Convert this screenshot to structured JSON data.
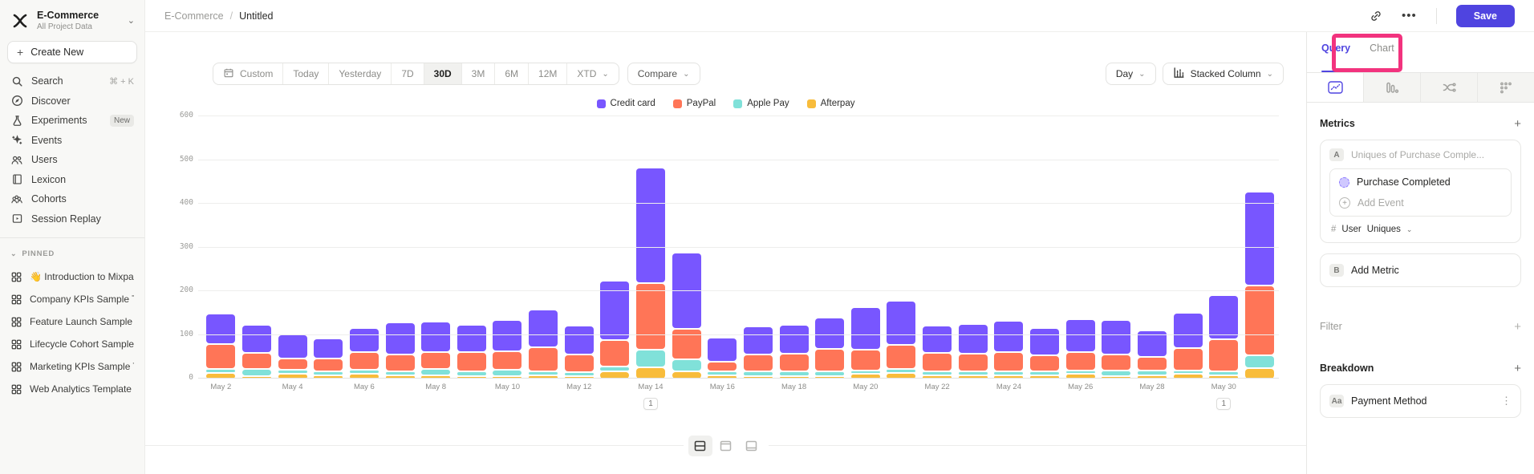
{
  "sidebar": {
    "project_name": "E-Commerce",
    "project_subtitle": "All Project Data",
    "create_new_label": "Create New",
    "nav": [
      {
        "label": "Search",
        "icon": "search",
        "shortcut": "⌘ + K"
      },
      {
        "label": "Discover",
        "icon": "discover"
      },
      {
        "label": "Experiments",
        "icon": "experiments",
        "badge": "New"
      },
      {
        "label": "Events",
        "icon": "events"
      },
      {
        "label": "Users",
        "icon": "users"
      },
      {
        "label": "Lexicon",
        "icon": "lexicon"
      },
      {
        "label": "Cohorts",
        "icon": "cohorts"
      },
      {
        "label": "Session Replay",
        "icon": "session-replay"
      }
    ],
    "pinned_header": "PINNED",
    "pinned": [
      {
        "label": "👋 Introduction to Mixpanel Bo"
      },
      {
        "label": "Company KPIs Sample Templat"
      },
      {
        "label": "Feature Launch Sample Templa"
      },
      {
        "label": "Lifecycle Cohort Sample Temp"
      },
      {
        "label": "Marketing KPIs Sample Templat"
      },
      {
        "label": "Web Analytics Template"
      }
    ]
  },
  "topbar": {
    "breadcrumb_project": "E-Commerce",
    "breadcrumb_separator": "/",
    "breadcrumb_page": "Untitled",
    "save_label": "Save"
  },
  "toolbar": {
    "date_ranges": [
      "Custom",
      "Today",
      "Yesterday",
      "7D",
      "30D",
      "3M",
      "6M",
      "12M",
      "XTD"
    ],
    "active_range": "30D",
    "compare_label": "Compare",
    "granularity_label": "Day",
    "chart_type_label": "Stacked Column"
  },
  "right_panel": {
    "tabs": [
      {
        "label": "Query",
        "active": true
      },
      {
        "label": "Chart",
        "active": false
      }
    ],
    "metrics_header": "Metrics",
    "metric_a": {
      "badge": "A",
      "title": "Uniques of Purchase Comple...",
      "event": "Purchase Completed",
      "add_event_label": "Add Event",
      "agg_prefix": "#",
      "agg_entity": "User",
      "agg_type": "Uniques"
    },
    "metric_b": {
      "badge": "B",
      "label": "Add Metric"
    },
    "filter_label": "Filter",
    "breakdown_label": "Breakdown",
    "breakdown_item": {
      "badge": "Aa",
      "label": "Payment Method"
    }
  },
  "chart_data": {
    "type": "bar",
    "stacked": true,
    "ylim": [
      0,
      600
    ],
    "yticks": [
      0,
      100,
      200,
      300,
      400,
      500,
      600
    ],
    "grid": true,
    "legend_position": "top-center",
    "legend_order": [
      "Credit card",
      "PayPal",
      "Apple Pay",
      "Afterpay"
    ],
    "x": [
      "May 2",
      "May 3",
      "May 4",
      "May 5",
      "May 6",
      "May 7",
      "May 8",
      "May 9",
      "May 10",
      "May 11",
      "May 12",
      "May 13",
      "May 14",
      "May 15",
      "May 16",
      "May 17",
      "May 18",
      "May 19",
      "May 20",
      "May 21",
      "May 22",
      "May 23",
      "May 24",
      "May 25",
      "May 26",
      "May 27",
      "May 28",
      "May 29",
      "May 30",
      "May 31"
    ],
    "x_label_every": 2,
    "series": [
      {
        "name": "Afterpay",
        "color": "#F8BC3B",
        "values": [
          15,
          8,
          13,
          10,
          12,
          10,
          10,
          8,
          6,
          10,
          8,
          18,
          28,
          18,
          10,
          8,
          6,
          8,
          12,
          15,
          10,
          10,
          10,
          10,
          12,
          8,
          10,
          12,
          10,
          25
        ]
      },
      {
        "name": "Apple Pay",
        "color": "#80E1D9",
        "values": [
          8,
          15,
          9,
          6,
          10,
          8,
          13,
          10,
          14,
          8,
          6,
          12,
          40,
          28,
          6,
          10,
          10,
          10,
          8,
          6,
          8,
          6,
          6,
          8,
          8,
          12,
          10,
          8,
          8,
          30
        ]
      },
      {
        "name": "PayPal",
        "color": "#FF7557",
        "values": [
          57,
          38,
          26,
          29,
          41,
          39,
          40,
          44,
          42,
          55,
          40,
          60,
          152,
          70,
          22,
          38,
          40,
          52,
          48,
          55,
          42,
          40,
          44,
          36,
          42,
          36,
          32,
          52,
          74,
          160
        ]
      },
      {
        "name": "Credit card",
        "color": "#7856FF",
        "values": [
          70,
          64,
          55,
          47,
          55,
          73,
          70,
          63,
          71,
          87,
          66,
          135,
          264,
          174,
          55,
          64,
          66,
          72,
          97,
          102,
          62,
          68,
          72,
          64,
          76,
          80,
          60,
          80,
          100,
          215
        ]
      }
    ],
    "annotations": [
      {
        "x": "May 14",
        "label": "1"
      },
      {
        "x": "May 30",
        "label": "1"
      }
    ]
  }
}
